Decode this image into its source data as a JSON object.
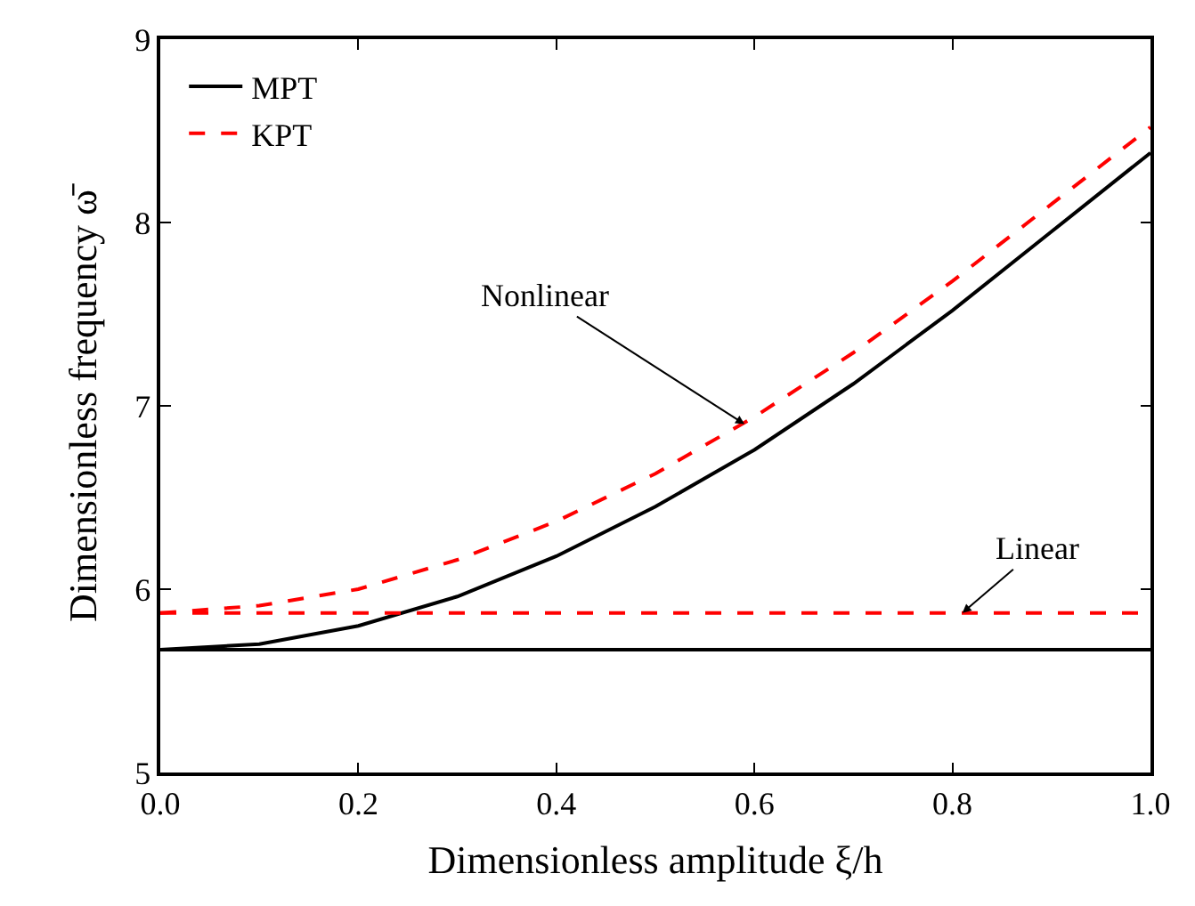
{
  "chart_data": {
    "type": "line",
    "xlabel": "Dimensionless amplitude ξ/h",
    "ylabel": "Dimensionless frequency ω̄",
    "x": [
      0,
      0.1,
      0.2,
      0.3,
      0.4,
      0.5,
      0.6,
      0.7,
      0.8,
      0.9,
      1.0
    ],
    "series": [
      {
        "name": "MPT",
        "color": "#000000",
        "line_style": "solid",
        "values": [
          5.67,
          5.7,
          5.8,
          5.96,
          6.18,
          6.45,
          6.76,
          7.12,
          7.52,
          7.95,
          8.38
        ]
      },
      {
        "name": "KPT",
        "color": "#ff0000",
        "line_style": "dashed",
        "values": [
          5.87,
          5.91,
          6.0,
          6.16,
          6.37,
          6.63,
          6.94,
          7.29,
          7.68,
          8.1,
          8.52
        ]
      }
    ],
    "ref_lines": [
      {
        "axis": "y",
        "value": 5.87,
        "color": "#ff0000",
        "line_style": "dashed"
      },
      {
        "axis": "y",
        "value": 5.67,
        "color": "#000000",
        "line_style": "solid"
      }
    ],
    "xlim": [
      0,
      1.0
    ],
    "ylim": [
      5,
      9
    ],
    "xticks": [
      {
        "value": 0,
        "label": "0.0"
      },
      {
        "value": 0.2,
        "label": "0.2"
      },
      {
        "value": 0.4,
        "label": "0.4"
      },
      {
        "value": 0.6,
        "label": "0.6"
      },
      {
        "value": 0.8,
        "label": "0.8"
      },
      {
        "value": 1.0,
        "label": "1.0"
      }
    ],
    "yticks": [
      5,
      6,
      7,
      8,
      9
    ],
    "annotations": [
      {
        "text": "Nonlinear",
        "x": 0.59,
        "y": 6.9
      },
      {
        "text": "Linear",
        "x": 0.81,
        "y": 5.87
      }
    ],
    "legend": "top left",
    "marker": "none"
  }
}
